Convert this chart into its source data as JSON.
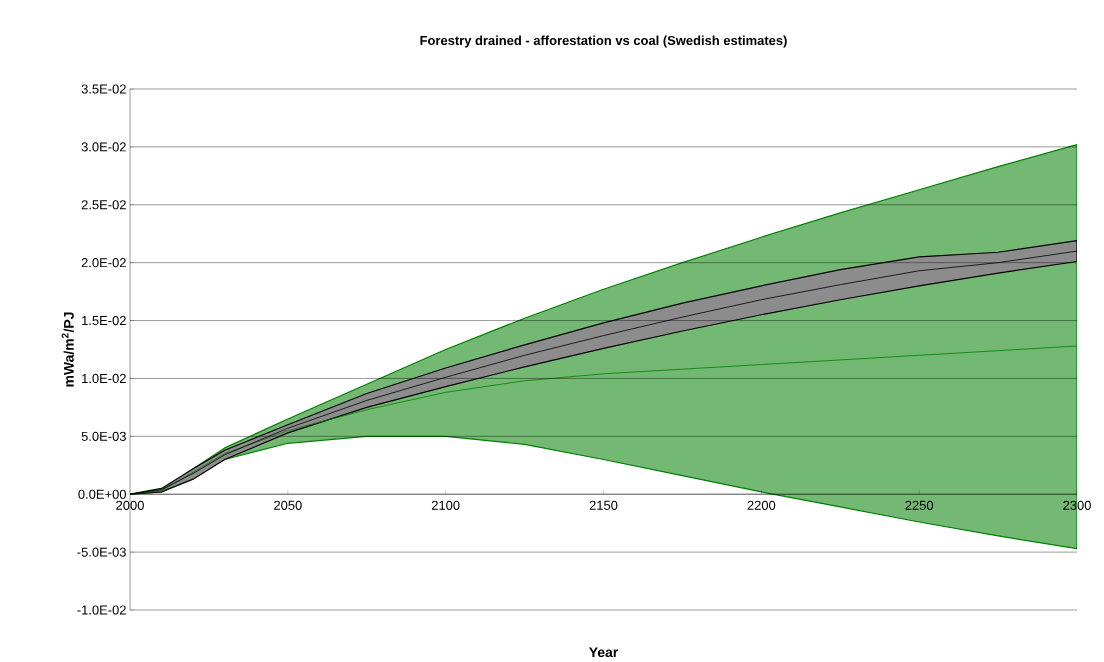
{
  "chart_data": {
    "type": "line",
    "title": "Forestry drained - afforestation vs coal (Swedish estimates)",
    "xlabel": "Year",
    "ylabel": "mWa/m$^{2}$/PJ",
    "x": [
      2000,
      2010,
      2020,
      2030,
      2050,
      2075,
      2100,
      2125,
      2150,
      2175,
      2200,
      2225,
      2250,
      2275,
      2300
    ],
    "series": [
      {
        "color": "#008000",
        "values": [
          0,
          0.0003,
          0.0019,
          0.0035,
          0.0055,
          0.0073,
          0.0088,
          0.0098,
          0.0104,
          0.0108,
          0.0112,
          0.0116,
          0.012,
          0.0124,
          0.0128
        ],
        "lower": [
          0,
          0.0002,
          0.0015,
          0.003,
          0.0044,
          0.005,
          0.005,
          0.0043,
          0.003,
          0.0016,
          0.0002,
          -0.0011,
          -0.0024,
          -0.0036,
          -0.0047
        ],
        "upper": [
          0,
          0.0003,
          0.0022,
          0.004,
          0.0065,
          0.0095,
          0.0125,
          0.0152,
          0.0177,
          0.02,
          0.0222,
          0.0243,
          0.0263,
          0.0283,
          0.0302
        ]
      },
      {
        "color": "#000000",
        "values": [
          0,
          0.0004,
          0.0018,
          0.0034,
          0.0057,
          0.0081,
          0.0101,
          0.012,
          0.0137,
          0.0153,
          0.0168,
          0.0181,
          0.0193,
          0.02,
          0.021
        ],
        "lower": [
          0,
          0.0002,
          0.0013,
          0.003,
          0.0053,
          0.0075,
          0.0093,
          0.011,
          0.0126,
          0.0141,
          0.0155,
          0.0168,
          0.018,
          0.0191,
          0.0201
        ],
        "upper": [
          0,
          0.0005,
          0.0022,
          0.0038,
          0.006,
          0.0087,
          0.0109,
          0.0129,
          0.0148,
          0.0165,
          0.018,
          0.0194,
          0.0205,
          0.0209,
          0.0219
        ]
      }
    ],
    "xlim": [
      2000,
      2300
    ],
    "xticks": [
      2000,
      2050,
      2100,
      2150,
      2200,
      2250,
      2300
    ],
    "ylim": [
      -0.01,
      0.035
    ],
    "yticks": [
      {
        "value": -0.01,
        "label": "-1.0E-02"
      },
      {
        "value": -0.005,
        "label": "-5.0E-03"
      },
      {
        "value": 0,
        "label": "0.0E+00"
      },
      {
        "value": 0.005,
        "label": "5.0E-03"
      },
      {
        "value": 0.01,
        "label": "1.0E-02"
      },
      {
        "value": 0.015,
        "label": "1.5E-02"
      },
      {
        "value": 0.02,
        "label": "2.0E-02"
      },
      {
        "value": 0.025,
        "label": "2.5E-02"
      },
      {
        "value": 0.03,
        "label": "3.0E-02"
      },
      {
        "value": 0.035,
        "label": "3.5E-02"
      }
    ],
    "grid": "y",
    "marker": "none",
    "line_style": "solid"
  }
}
